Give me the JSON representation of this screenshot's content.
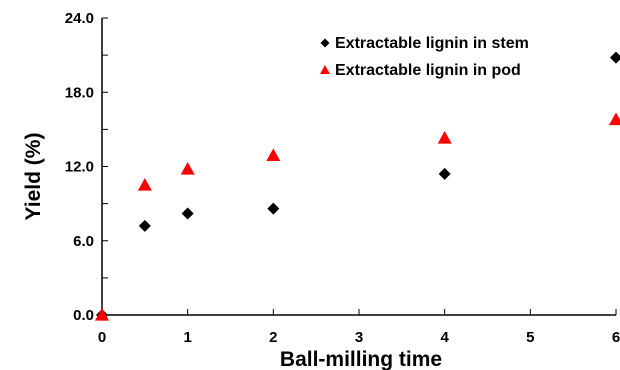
{
  "chart_data": {
    "type": "scatter",
    "title": "",
    "xlabel": "Ball-milling time",
    "ylabel": "Yield (%)",
    "xlim": [
      0,
      6
    ],
    "ylim": [
      0,
      24
    ],
    "xticks": [
      0,
      1,
      2,
      3,
      4,
      5,
      6
    ],
    "xtick_labels": [
      "0",
      "1",
      "2",
      "3",
      "4",
      "5",
      "6"
    ],
    "yticks": [
      0,
      6,
      12,
      18,
      24
    ],
    "ytick_labels": [
      "0.0",
      "6.0",
      "12.0",
      "18.0",
      "24.0"
    ],
    "grid": false,
    "legend_position": "top-right",
    "series": [
      {
        "name": "Extractable lignin in stem",
        "marker": "diamond",
        "color": "#000000",
        "x": [
          0,
          0.5,
          1,
          2,
          4,
          6
        ],
        "y": [
          0.0,
          7.2,
          8.2,
          8.6,
          11.4,
          20.8
        ]
      },
      {
        "name": "Extractable lignin in pod",
        "marker": "triangle",
        "color": "#ff0000",
        "x": [
          0,
          0.5,
          1,
          2,
          4,
          6
        ],
        "y": [
          0.0,
          10.5,
          11.8,
          12.9,
          14.3,
          15.8
        ]
      }
    ]
  }
}
